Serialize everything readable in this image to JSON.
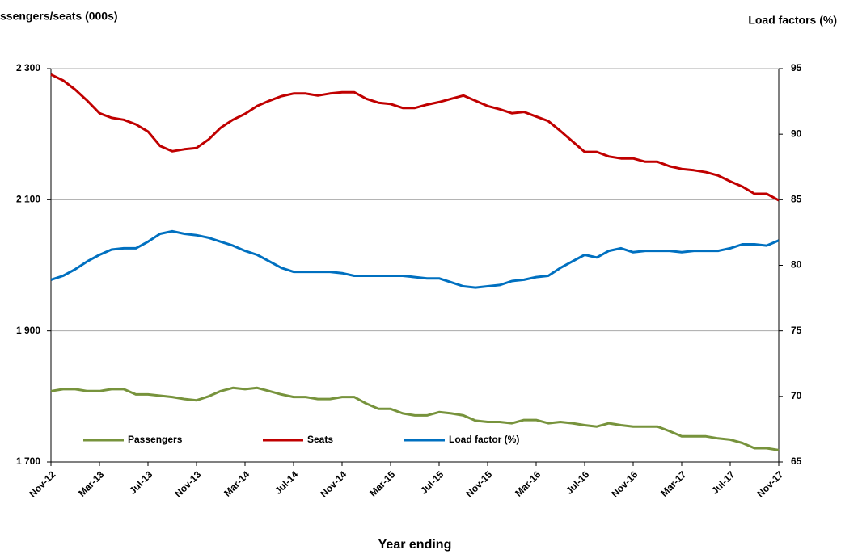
{
  "chart_data": {
    "type": "line",
    "y_label": "ssengers/seats (000s)",
    "y2_label": "Load factors (%)",
    "x_label": "Year ending",
    "categories": [
      "Nov-12",
      null,
      null,
      null,
      "Mar-13",
      null,
      null,
      null,
      "Jul-13",
      null,
      null,
      null,
      "Nov-13",
      null,
      null,
      null,
      "Mar-14",
      null,
      null,
      null,
      "Jul-14",
      null,
      null,
      null,
      "Nov-14",
      null,
      null,
      null,
      "Mar-15",
      null,
      null,
      null,
      "Jul-15",
      null,
      null,
      null,
      "Nov-15",
      null,
      null,
      null,
      "Mar-16",
      null,
      null,
      null,
      "Jul-16",
      null,
      null,
      null,
      "Nov-16",
      null,
      null,
      null,
      "Mar-17",
      null,
      null,
      null,
      "Jul-17",
      null,
      null,
      null,
      "Nov-17"
    ],
    "ylim": [
      1700,
      2300
    ],
    "yticks": [
      {
        "value": 1700,
        "label": "1 700"
      },
      {
        "value": 1900,
        "label": "1 900"
      },
      {
        "value": 2100,
        "label": "2 100"
      },
      {
        "value": 2300,
        "label": "2 300"
      }
    ],
    "y2lim": [
      65,
      95
    ],
    "y2ticks": [
      65,
      70,
      75,
      80,
      85,
      90,
      95
    ],
    "grid": true,
    "legend": "bottom",
    "series": [
      {
        "name": "Passengers",
        "color": "#77933c",
        "values": [
          1808,
          1811,
          1811,
          1808,
          1808,
          1811,
          1811,
          1803,
          1803,
          1801,
          1799,
          1796,
          1794,
          1800,
          1808,
          1813,
          1811,
          1813,
          1808,
          1803,
          1799,
          1799,
          1796,
          1796,
          1799,
          1799,
          1789,
          1781,
          1781,
          1774,
          1771,
          1771,
          1776,
          1774,
          1771,
          1763,
          1761,
          1761,
          1759,
          1764,
          1764,
          1759,
          1761,
          1759,
          1756,
          1754,
          1759,
          1756,
          1754,
          1754,
          1754,
          1747,
          1739,
          1739,
          1739,
          1736,
          1734,
          1729,
          1721,
          1721,
          1718
        ]
      },
      {
        "name": "Seats",
        "color": "#c00000",
        "values": [
          2291,
          2282,
          2268,
          2251,
          2232,
          2225,
          2222,
          2215,
          2204,
          2182,
          2174,
          2177,
          2179,
          2192,
          2210,
          2222,
          2231,
          2243,
          2251,
          2258,
          2262,
          2262,
          2259,
          2262,
          2264,
          2264,
          2254,
          2248,
          2246,
          2240,
          2240,
          2245,
          2249,
          2254,
          2259,
          2251,
          2243,
          2238,
          2232,
          2234,
          2227,
          2220,
          2205,
          2189,
          2173,
          2173,
          2166,
          2163,
          2163,
          2158,
          2158,
          2151,
          2147,
          2145,
          2142,
          2137,
          2128,
          2120,
          2109,
          2109,
          2099
        ]
      },
      {
        "name": "Load factor (%)",
        "color": "#0070c0",
        "axis": "y2",
        "values": [
          78.9,
          79.2,
          79.7,
          80.3,
          80.8,
          81.2,
          81.3,
          81.3,
          81.8,
          82.4,
          82.6,
          82.4,
          82.3,
          82.1,
          81.8,
          81.5,
          81.1,
          80.8,
          80.3,
          79.8,
          79.5,
          79.5,
          79.5,
          79.5,
          79.4,
          79.2,
          79.2,
          79.2,
          79.2,
          79.2,
          79.1,
          79.0,
          79.0,
          78.7,
          78.4,
          78.3,
          78.4,
          78.5,
          78.8,
          78.9,
          79.1,
          79.2,
          79.8,
          80.3,
          80.8,
          80.6,
          81.1,
          81.3,
          81.0,
          81.1,
          81.1,
          81.1,
          81.0,
          81.1,
          81.1,
          81.1,
          81.3,
          81.6,
          81.6,
          81.5,
          81.9
        ]
      }
    ]
  }
}
